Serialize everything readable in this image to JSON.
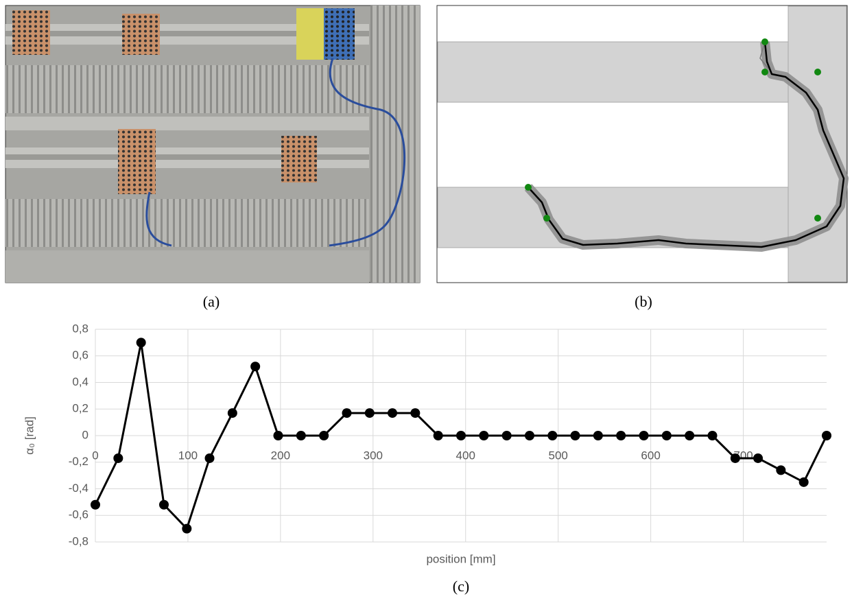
{
  "captions": [
    "(a)",
    "(b)",
    "(c)"
  ],
  "chart_data": {
    "type": "line",
    "x_label": "position [mm]",
    "y_label": "α₀ [rad]",
    "x": [
      0,
      24.7,
      49.4,
      74.1,
      98.8,
      123.4,
      148.1,
      172.8,
      197.5,
      222.2,
      246.9,
      271.6,
      296.3,
      320.9,
      345.6,
      370.3,
      395,
      419.7,
      444.4,
      469.1,
      493.8,
      518.4,
      543.1,
      567.8,
      592.5,
      617.2,
      641.9,
      666.6,
      691.3,
      715.9,
      740.6,
      765.3,
      790
    ],
    "values": [
      -0.52,
      -0.17,
      0.7,
      -0.52,
      -0.7,
      -0.17,
      0.17,
      0.52,
      0,
      0,
      0,
      0.17,
      0.17,
      0.17,
      0.17,
      0,
      0,
      0,
      0,
      0,
      0,
      0,
      0,
      0,
      0,
      0,
      0,
      0,
      -0.17,
      -0.17,
      -0.26,
      -0.35,
      0
    ],
    "color": "#000000",
    "xlim": [
      0,
      790
    ],
    "xticks": [
      0,
      100,
      200,
      300,
      400,
      500,
      600,
      700
    ],
    "ylim": [
      -0.8,
      0.8
    ],
    "yticks": [
      {
        "value": -0.8,
        "label": "-0,8"
      },
      {
        "value": -0.6,
        "label": "-0,6"
      },
      {
        "value": -0.4,
        "label": "-0,4"
      },
      {
        "value": -0.2,
        "label": "-0,2"
      },
      0,
      {
        "value": 0.2,
        "label": "0,2"
      },
      {
        "value": 0.4,
        "label": "0,4"
      },
      {
        "value": 0.6,
        "label": "0,6"
      },
      {
        "value": 0.8,
        "label": "0,8"
      }
    ],
    "grid": true
  }
}
